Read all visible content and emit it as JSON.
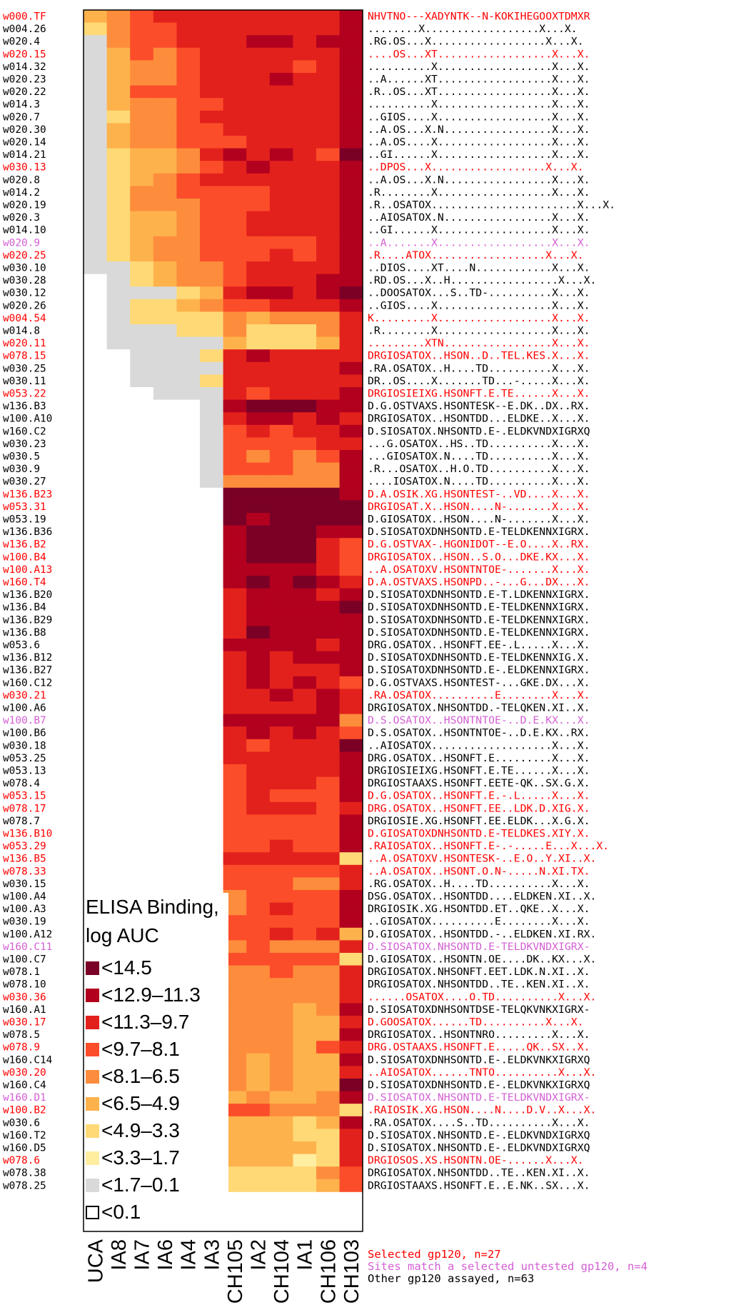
{
  "chart_data": {
    "type": "heatmap",
    "title": "",
    "xlabel": "",
    "ylabel": "",
    "columns": [
      "UCA",
      "IA8",
      "IA7",
      "IA6",
      "IA4",
      "IA3",
      "CH105",
      "IA2",
      "CH104",
      "IA1",
      "CH106",
      "CH103"
    ],
    "rows": [
      {
        "name": "w000.TF",
        "group": "selected",
        "seq": "NHVTNO---XADYNTK--N-KOKIHEGOOXTDMXR",
        "levels": "456777777778"
      },
      {
        "name": "w004.26",
        "group": "other",
        "seq": "........X..................X...X.",
        "levels": "356677777778"
      },
      {
        "name": "w020.4",
        "group": "other",
        "seq": ".RG.OS...X..................X...X.",
        "levels": "156677788788"
      },
      {
        "name": "w020.15",
        "group": "selected",
        "seq": "....OS...XT..................X...X.",
        "levels": "146567777778"
      },
      {
        "name": "w014.32",
        "group": "other",
        "seq": "..........X..................X...X.",
        "levels": "145567777678"
      },
      {
        "name": "w020.23",
        "group": "other",
        "seq": "..A......XT..................X...X.",
        "levels": "145567778778"
      },
      {
        "name": "w020.22",
        "group": "other",
        "seq": ".R..OS...XT..................X...X.",
        "levels": "146667777778"
      },
      {
        "name": "w014.3",
        "group": "other",
        "seq": "..........X..................X...X.",
        "levels": "145566777778"
      },
      {
        "name": "w020.7",
        "group": "other",
        "seq": "..GIOS....X..................X...X.",
        "levels": "135567777778"
      },
      {
        "name": "w020.30",
        "group": "other",
        "seq": "..A.OS...X.N.................X...X.",
        "levels": "145566777778"
      },
      {
        "name": "w020.14",
        "group": "other",
        "seq": "..A.OS....X..................X...X.",
        "levels": "145566677778"
      },
      {
        "name": "w014.21",
        "group": "other",
        "seq": "..GI......X..................X...X.",
        "levels": "134457878769"
      },
      {
        "name": "w030.13",
        "group": "selected",
        "seq": "..DPOS...X..................X...X.",
        "levels": "134456787778"
      },
      {
        "name": "w020.8",
        "group": "other",
        "seq": "..A.OS...X.N.................X...X.",
        "levels": "134567777778"
      },
      {
        "name": "w014.2",
        "group": "other",
        "seq": ".R........X..................X...X.",
        "levels": "135566667778"
      },
      {
        "name": "w020.19",
        "group": "other",
        "seq": ".R..OSATOX.......................X...X.",
        "levels": "135556667778"
      },
      {
        "name": "w020.3",
        "group": "other",
        "seq": "..AIOSATOX.N.................X...X.",
        "levels": "134456677778"
      },
      {
        "name": "w014.10",
        "group": "other",
        "seq": "..GI......X..................X...X.",
        "levels": "134456677778"
      },
      {
        "name": "w020.9",
        "group": "untested",
        "seq": "..A.......X..................X...X.",
        "levels": "134556666678"
      },
      {
        "name": "w020.25",
        "group": "selected",
        "seq": ".R....ATOX..................X...X.",
        "levels": "134556667678"
      },
      {
        "name": "w030.10",
        "group": "other",
        "seq": "..DIOS....XT....N............X...X.",
        "levels": "113455677778"
      },
      {
        "name": "w030.28",
        "group": "other",
        "seq": ".RD.OS...X..H.................X...X.",
        "levels": "013455677788"
      },
      {
        "name": "w030.12",
        "group": "other",
        "seq": "..DOOSATOX...S..TD-..........X...X.",
        "levels": "011134788789"
      },
      {
        "name": "w020.26",
        "group": "other",
        "seq": "..GIOS....X..................X...X.",
        "levels": "013345667778"
      },
      {
        "name": "w004.54",
        "group": "selected",
        "seq": "K.........X..................X...X.",
        "levels": "013333545557"
      },
      {
        "name": "w014.8",
        "group": "other",
        "seq": ".R........X..................X...X.",
        "levels": "011133533357"
      },
      {
        "name": "w020.11",
        "group": "selected",
        "seq": ".........XTN.................X...X.",
        "levels": "011111433347"
      },
      {
        "name": "w078.15",
        "group": "selected",
        "seq": "DRGIOSATOX..HSON..D..TEL.KES.X...X.",
        "levels": "001113787777"
      },
      {
        "name": "w030.25",
        "group": "other",
        "seq": ".RA.OSATOX..H....TD..........X...X.",
        "levels": "001111777778"
      },
      {
        "name": "w030.11",
        "group": "other",
        "seq": "DR..OS....X.......TD...-.....X...X.",
        "levels": "001113777777"
      },
      {
        "name": "w053.22",
        "group": "selected",
        "seq": "DRGIOSIEIXG.HSONFT.E.TE......X...X.",
        "levels": "000111767778"
      },
      {
        "name": "w136.B3",
        "group": "other",
        "seq": "D.G.OSTVAXS.HSONTESK--E.DK..DX..RX.",
        "levels": "000001899988"
      },
      {
        "name": "w100.A10",
        "group": "other",
        "seq": "DRGIOSATOX..HSONTDD...ELDKE..X...X.",
        "levels": "000001788787"
      },
      {
        "name": "w160.C2",
        "group": "other",
        "seq": "D.SIOSATOX.NHSONTD.E-.ELDKVNDXIGRXQ",
        "levels": "000001676778"
      },
      {
        "name": "w030.23",
        "group": "other",
        "seq": "...G.OSATOX..HS..TD..........X...X.",
        "levels": "000001666677"
      },
      {
        "name": "w030.5",
        "group": "other",
        "seq": "...GIOSATOX.N....TD..........X...X.",
        "levels": "000001656568"
      },
      {
        "name": "w030.9",
        "group": "other",
        "seq": ".R...OSATOX..H.O.TD..........X...X.",
        "levels": "000001666558"
      },
      {
        "name": "w030.27",
        "group": "other",
        "seq": "....IOSATOX.N....TD..........X...X.",
        "levels": "000001555558"
      },
      {
        "name": "w136.B23",
        "group": "selected",
        "seq": "D.A.OSIK.XG.HSONTEST-..VD....X...X.",
        "levels": "000000999998"
      },
      {
        "name": "w053.31",
        "group": "selected",
        "seq": "DRGIOSAT.X..HSON....N-.......X...X.",
        "levels": "000000999999"
      },
      {
        "name": "w053.19",
        "group": "other",
        "seq": "D.GIOSATOX..HSON....N-.......X...X.",
        "levels": "000000989999"
      },
      {
        "name": "w136.B36",
        "group": "other",
        "seq": "D.SIOSATOXDNHSONTD.E-TELDKENNXIGRX.",
        "levels": "000000899988"
      },
      {
        "name": "w136.B2",
        "group": "selected",
        "seq": "D.G.OSTVAX-.HGONIDOT--E.O....X..RX.",
        "levels": "000000899976"
      },
      {
        "name": "w100.B4",
        "group": "selected",
        "seq": "DRGIOSATOX..HSON..S.O...DKE.KX...X.",
        "levels": "000000899976"
      },
      {
        "name": "w100.A13",
        "group": "selected",
        "seq": "..A.OSATOXV.HSONTNTOE-.......X...X.",
        "levels": "000000888876"
      },
      {
        "name": "w160.T4",
        "group": "selected",
        "seq": "D.A.OSTVAXS.HSONPD..-...G...DX...X.",
        "levels": "000000898987"
      },
      {
        "name": "w136.B20",
        "group": "other",
        "seq": "D.SIOSATOXDNHSONTD.E-T.LDKENNXIGRX.",
        "levels": "000000788878"
      },
      {
        "name": "w136.B4",
        "group": "other",
        "seq": "D.SIOSATOXDNHSONTD.E-TELDKENNXIGRX.",
        "levels": "000000788889"
      },
      {
        "name": "w136.B29",
        "group": "other",
        "seq": "D.SIOSATOXDNHSONTD.E-TELDKENNXIGRX.",
        "levels": "000000788888"
      },
      {
        "name": "w136.B8",
        "group": "other",
        "seq": "D.SIOSATOXDNHSONTD.E-TELDKENNXIGRX.",
        "levels": "000000798888"
      },
      {
        "name": "w053.6",
        "group": "other",
        "seq": "DRG.OSATOX..HSONFT.EE-.L.....X...X.",
        "levels": "000000888878"
      },
      {
        "name": "w136.B12",
        "group": "other",
        "seq": "D.SIOSATOXDNHSONTD.E-TELDKENNXIG.X.",
        "levels": "000000787888"
      },
      {
        "name": "w136.B27",
        "group": "other",
        "seq": "D.SIOSATOXDNHSONTD.E-.ELDKENNXIGRX.",
        "levels": "000000787778"
      },
      {
        "name": "w160.C12",
        "group": "other",
        "seq": "D.G.OSTVAXS.HSONTEST-...GKE.DX...X.",
        "levels": "000000787876"
      },
      {
        "name": "w030.21",
        "group": "selected",
        "seq": ".RA.OSATOX..........E........X...X.",
        "levels": "000000778787"
      },
      {
        "name": "w100.A6",
        "group": "other",
        "seq": "DRGIOSATOX.NHSONTDD.-TELQKEN.XI..X.",
        "levels": "000000777787"
      },
      {
        "name": "w100.B7",
        "group": "untested",
        "seq": "D.S.OSATOX..HSONTNTOE-..D.E.KX...X.",
        "levels": "000000888885"
      },
      {
        "name": "w100.B6",
        "group": "other",
        "seq": "D.S.OSATOX..HSONTNTOE-..D.E.KX..RX.",
        "levels": "000000787876"
      },
      {
        "name": "w030.18",
        "group": "other",
        "seq": "..AIOSATOX...................X...X.",
        "levels": "000000767779"
      },
      {
        "name": "w053.25",
        "group": "other",
        "seq": "DRG.OSATOX..HSONFT.E.........X...X.",
        "levels": "000000777778"
      },
      {
        "name": "w053.13",
        "group": "other",
        "seq": "DRGIOSIEIXG.HSONFT.E.TE......X...X.",
        "levels": "000000677778"
      },
      {
        "name": "w078.4",
        "group": "other",
        "seq": "DRGIOSTAAXS.HSONFT.EETE-QK..SX.G.X.",
        "levels": "000000677768"
      },
      {
        "name": "w053.15",
        "group": "selected",
        "seq": "D.G.OSATOX..HSONFT.E.-.L.....X...X.",
        "levels": "000000676668"
      },
      {
        "name": "w078.17",
        "group": "selected",
        "seq": "DRG.OSATOX..HSONFT.EE..LDK.D.XIG.X.",
        "levels": "000000677767"
      },
      {
        "name": "w078.7",
        "group": "other",
        "seq": "DRGIOSIE.XG.HSONFT.EE.ELDK...X.G.X.",
        "levels": "000000666668"
      },
      {
        "name": "w136.B10",
        "group": "selected",
        "seq": "D.GIOSATOXDNHSONTD.E-TELDKES.XIY.X.",
        "levels": "000000666668"
      },
      {
        "name": "w053.29",
        "group": "selected",
        "seq": ".RAIOSATOX..HSONFT.E-.-.....E...X...X.",
        "levels": "000000667668"
      },
      {
        "name": "w136.B5",
        "group": "selected",
        "seq": "..A.OSATOXV.HSONTESK-..E.O..Y.XI..X.",
        "levels": "000000777773"
      },
      {
        "name": "w078.33",
        "group": "selected",
        "seq": "..A.OSATOX..HSONT.O.N-.....N.XI.TX.",
        "levels": "000000666667"
      },
      {
        "name": "w030.15",
        "group": "other",
        "seq": ".RG.OSATOX..H....TD..........X...X.",
        "levels": "000000666557"
      },
      {
        "name": "w100.A4",
        "group": "other",
        "seq": "DSG.OSATOX..HSONTDD....ELDKEN.XI..X.",
        "levels": "000000566668"
      },
      {
        "name": "w100.A3",
        "group": "other",
        "seq": "DRGIOSIK.XG.HSONTDD.ET..QKE..X...X.",
        "levels": "000000567668"
      },
      {
        "name": "w030.19",
        "group": "other",
        "seq": "..GIOSATOX..........E........X...X.",
        "levels": "000000666668"
      },
      {
        "name": "w100.A12",
        "group": "other",
        "seq": "D.GIOSATOX..HSONTDD.-..ELDKEN.XI.RX.",
        "levels": "000000667674"
      },
      {
        "name": "w160.C11",
        "group": "untested",
        "seq": "D.SIOSATOX.NHSONTD.E-TELDKVNDXIGRX-",
        "levels": "000000565557"
      },
      {
        "name": "w100.C7",
        "group": "other",
        "seq": "D.GIOSATOX..HSONTN.OE....DK..KX...X.",
        "levels": "000000666663"
      },
      {
        "name": "w078.1",
        "group": "other",
        "seq": "DRGIOSATOX.NHSONFT.EET.LDK.N.XI..X.",
        "levels": "000000556557"
      },
      {
        "name": "w078.10",
        "group": "other",
        "seq": "DRGIOSATOX.NHSONTDD..TE..KEN.XI..X.",
        "levels": "000000555557"
      },
      {
        "name": "w030.36",
        "group": "selected",
        "seq": "......OSATOX....O.TD..........X...X.",
        "levels": "000000555557"
      },
      {
        "name": "w160.A1",
        "group": "other",
        "seq": "D.SIOSATOXDNHSONTDSE-TELQKVNKXIGRX-",
        "levels": "000000555458"
      },
      {
        "name": "w030.17",
        "group": "selected",
        "seq": "D.GOOSATOX......TD..........X...X.",
        "levels": "000000555447"
      },
      {
        "name": "w078.5",
        "group": "other",
        "seq": "DRGIOSATOX..HSONTNRO.........X...X.",
        "levels": "000000555448"
      },
      {
        "name": "w078.9",
        "group": "selected",
        "seq": "DRG.OSTAAXS.HSONFT.E.....QK..SX..X.",
        "levels": "000000555467"
      },
      {
        "name": "w160.C14",
        "group": "other",
        "seq": "D.SIOSATOXDNHSONTD.E-.ELDKVNKXIGRXQ",
        "levels": "000000545448"
      },
      {
        "name": "w030.20",
        "group": "selected",
        "seq": "..AIOSATOX......TNTO..........X...X.",
        "levels": "000000545447"
      },
      {
        "name": "w160.C4",
        "group": "other",
        "seq": "D.SIOSATOXDNHSONTD.E-.ELDKVNKXIGRXQ",
        "levels": "000000545449"
      },
      {
        "name": "w160.D1",
        "group": "untested",
        "seq": "D.SIOSATOX.NHSONTD.E-TELDKVNDXIGRX-",
        "levels": "000000454458"
      },
      {
        "name": "w100.B2",
        "group": "selected",
        "seq": ".RAIOSIK.XG.HSON....N....D.V..X...X.",
        "levels": "000000665553"
      },
      {
        "name": "w030.6",
        "group": "other",
        "seq": ".RA.OSATOX....S..TD..........X...X.",
        "levels": "000000444348"
      },
      {
        "name": "w160.T2",
        "group": "other",
        "seq": "D.SIOSATOX.NHSONTD.E-.ELDKVNDXIGRXQ",
        "levels": "000000444337"
      },
      {
        "name": "w160.D5",
        "group": "other",
        "seq": "D.SIOSATOX.NHSONTD.E-.ELDKVNDXIGRXQ",
        "levels": "000000444437"
      },
      {
        "name": "w078.6",
        "group": "selected",
        "seq": "DRGIOSOS.XS.HSONTN.OE-......X...X.",
        "levels": "000000444237"
      },
      {
        "name": "w078.38",
        "group": "other",
        "seq": "DRGIOSATOX.NHSONTDD..TE..KEN.XI..X.",
        "levels": "000000333356"
      },
      {
        "name": "w078.25",
        "group": "other",
        "seq": "DRGIOSTAAXS.HSONFT.E..E.NK..SX...X.",
        "levels": "000000333346"
      }
    ],
    "legend": {
      "title_line1": "ELISA Binding,",
      "title_line2": "log AUC",
      "position": "lower-left",
      "bins": [
        {
          "label": "<14.5",
          "color": "#7a0026"
        },
        {
          "label": "<12.9–11.3",
          "color": "#b2001f"
        },
        {
          "label": "<11.3–9.7",
          "color": "#e3211c"
        },
        {
          "label": "<9.7–8.1",
          "color": "#fc4d2a"
        },
        {
          "label": "<8.1–6.5",
          "color": "#fd8d3c"
        },
        {
          "label": "<6.5–4.9",
          "color": "#feb24c"
        },
        {
          "label": "<4.9–3.3",
          "color": "#fed976"
        },
        {
          "label": "<3.3–1.7",
          "color": "#ffeda0"
        },
        {
          "label": "<1.7–0.1",
          "color": "#d9d9d9"
        },
        {
          "label": "<0.1",
          "color": "#ffffff"
        }
      ]
    },
    "group_colors": {
      "selected": "#ff0000",
      "untested": "#d35fd3",
      "other": "#000000"
    },
    "footer": {
      "selected": "Selected gp120, n=27",
      "untested": "Sites match a selected untested gp120, n=4",
      "other": "Other gp120 assayed, n=63"
    }
  }
}
